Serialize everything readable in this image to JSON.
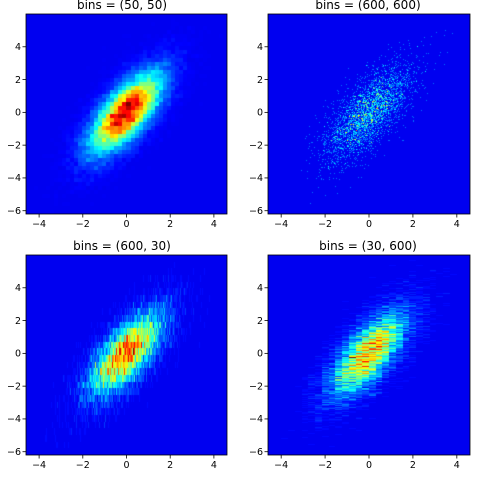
{
  "chart_data": [
    {
      "type": "heatmap",
      "title": "bins = (50, 50)",
      "bins": [
        50,
        50
      ],
      "xlim": [
        -4.6,
        4.6
      ],
      "ylim": [
        -6.2,
        6.0
      ],
      "xticks": [
        -4,
        -2,
        0,
        2,
        4
      ],
      "yticks": [
        -6,
        -4,
        -2,
        0,
        2,
        4
      ],
      "colormap": "jet",
      "distribution": {
        "mean": [
          0,
          0
        ],
        "std": [
          1,
          1.5
        ],
        "correlation": 0.7
      },
      "grid": false
    },
    {
      "type": "heatmap",
      "title": "bins = (600, 600)",
      "bins": [
        600,
        600
      ],
      "xlim": [
        -4.6,
        4.6
      ],
      "ylim": [
        -6.2,
        6.0
      ],
      "xticks": [
        -4,
        -2,
        0,
        2,
        4
      ],
      "yticks": [
        -6,
        -4,
        -2,
        0,
        2,
        4
      ],
      "colormap": "jet",
      "distribution": {
        "mean": [
          0,
          0
        ],
        "std": [
          1,
          1.5
        ],
        "correlation": 0.7
      },
      "grid": false
    },
    {
      "type": "heatmap",
      "title": "bins = (600, 30)",
      "bins": [
        600,
        30
      ],
      "xlim": [
        -4.6,
        4.6
      ],
      "ylim": [
        -6.2,
        6.0
      ],
      "xticks": [
        -4,
        -2,
        0,
        2,
        4
      ],
      "yticks": [
        -6,
        -4,
        -2,
        0,
        2,
        4
      ],
      "colormap": "jet",
      "distribution": {
        "mean": [
          0,
          0
        ],
        "std": [
          1,
          1.5
        ],
        "correlation": 0.7
      },
      "grid": false
    },
    {
      "type": "heatmap",
      "title": "bins = (30, 600)",
      "bins": [
        30,
        600
      ],
      "xlim": [
        -4.6,
        4.6
      ],
      "ylim": [
        -6.2,
        6.0
      ],
      "xticks": [
        -4,
        -2,
        0,
        2,
        4
      ],
      "yticks": [
        -6,
        -4,
        -2,
        0,
        2,
        4
      ],
      "colormap": "jet",
      "distribution": {
        "mean": [
          0,
          0
        ],
        "std": [
          1,
          1.5
        ],
        "correlation": 0.7
      },
      "grid": false
    }
  ]
}
